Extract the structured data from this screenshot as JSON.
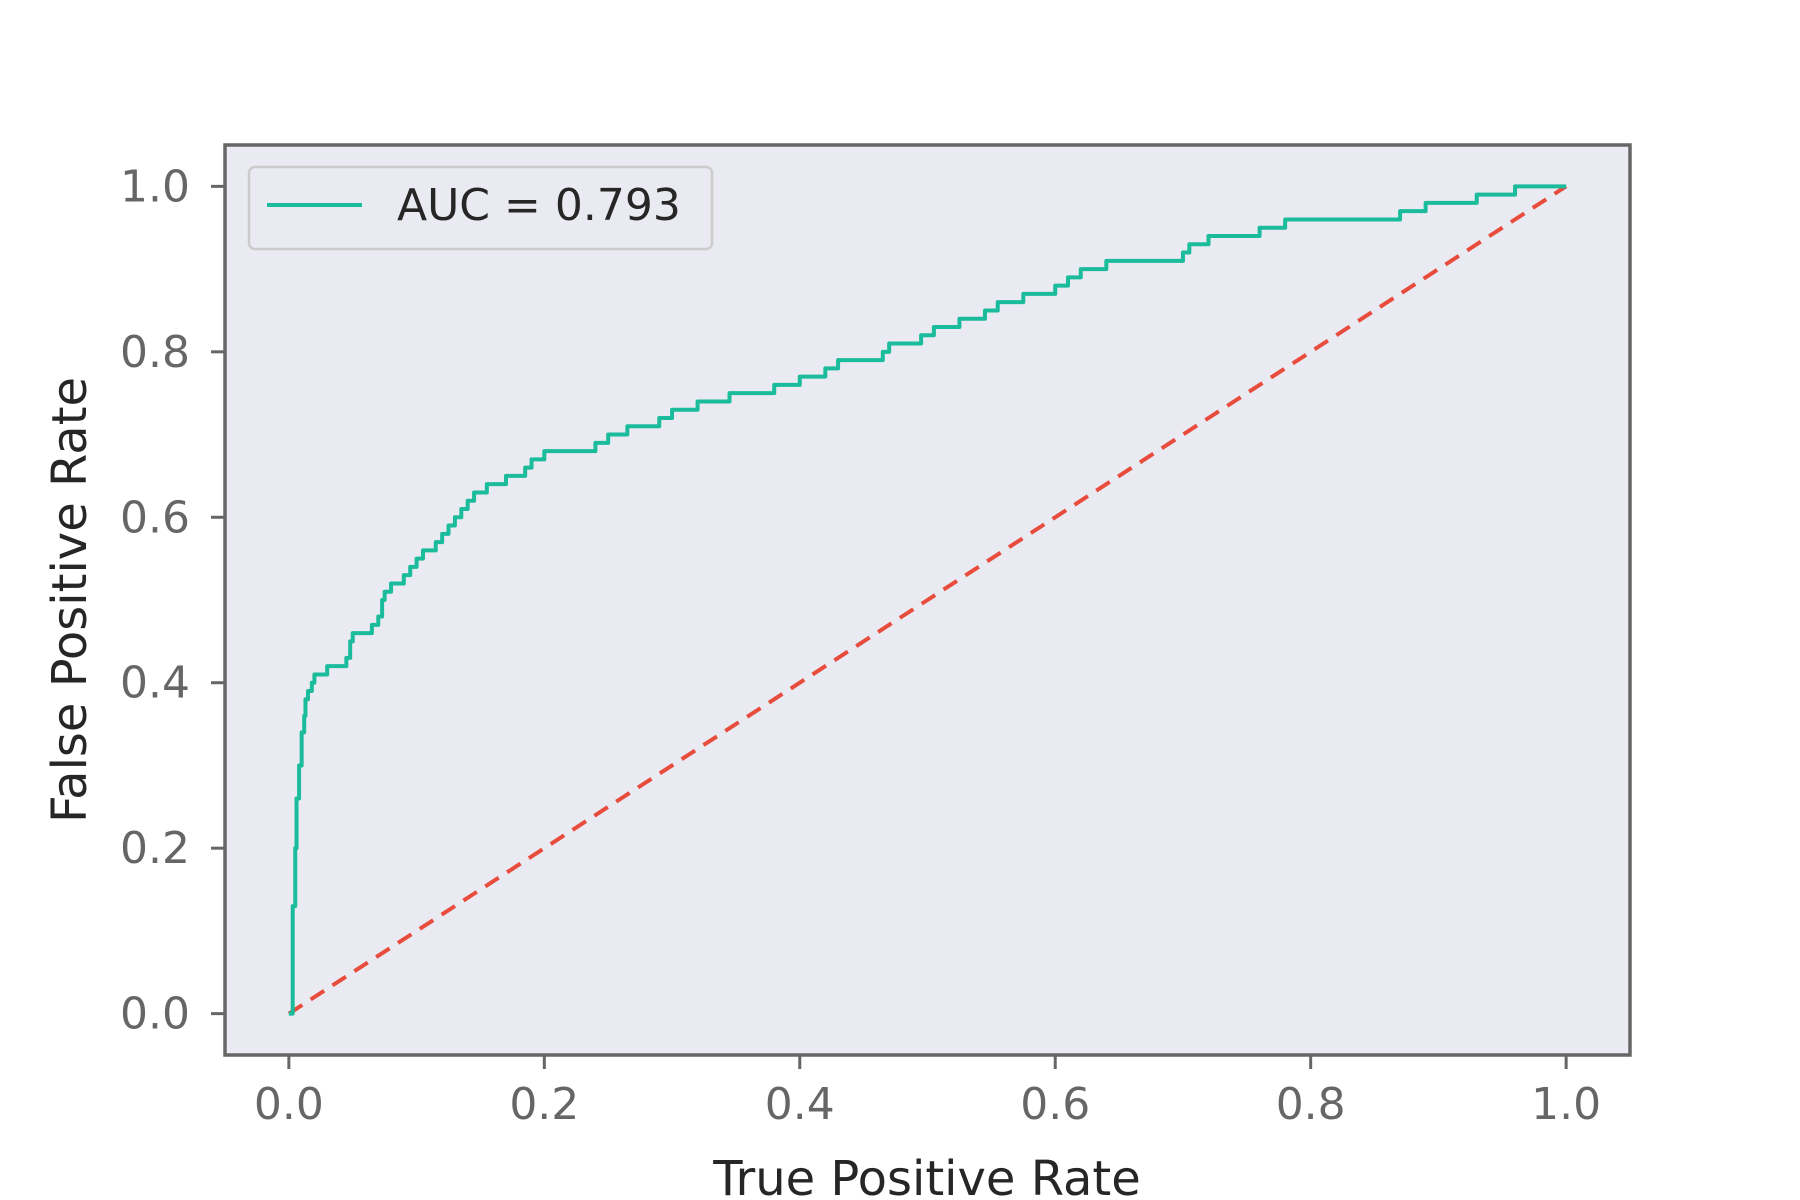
{
  "chart_data": {
    "type": "line",
    "title": "",
    "xlabel": "True Positive Rate",
    "ylabel": "False Positive Rate",
    "xlim": [
      -0.05,
      1.05
    ],
    "ylim": [
      -0.05,
      1.05
    ],
    "xticks": [
      0.0,
      0.2,
      0.4,
      0.6,
      0.8,
      1.0
    ],
    "yticks": [
      0.0,
      0.2,
      0.4,
      0.6,
      0.8,
      1.0
    ],
    "xtick_labels": [
      "0.0",
      "0.2",
      "0.4",
      "0.6",
      "0.8",
      "1.0"
    ],
    "ytick_labels": [
      "0.0",
      "0.2",
      "0.4",
      "0.6",
      "0.8",
      "1.0"
    ],
    "grid": false,
    "legend_position": "top-left",
    "background_color": "#eaeaf2",
    "series": [
      {
        "name": "AUC = 0.793",
        "color": "#1abc9c",
        "style": "solid-step",
        "x": [
          0.0,
          0.003,
          0.005,
          0.006,
          0.008,
          0.01,
          0.012,
          0.013,
          0.015,
          0.018,
          0.02,
          0.025,
          0.03,
          0.045,
          0.048,
          0.05,
          0.055,
          0.065,
          0.07,
          0.073,
          0.075,
          0.08,
          0.09,
          0.095,
          0.1,
          0.105,
          0.11,
          0.115,
          0.12,
          0.125,
          0.13,
          0.135,
          0.14,
          0.145,
          0.15,
          0.155,
          0.16,
          0.17,
          0.185,
          0.19,
          0.2,
          0.21,
          0.24,
          0.25,
          0.26,
          0.265,
          0.27,
          0.29,
          0.3,
          0.32,
          0.33,
          0.345,
          0.37,
          0.38,
          0.4,
          0.405,
          0.42,
          0.43,
          0.465,
          0.47,
          0.49,
          0.495,
          0.5,
          0.505,
          0.51,
          0.52,
          0.525,
          0.53,
          0.545,
          0.55,
          0.555,
          0.565,
          0.575,
          0.59,
          0.6,
          0.605,
          0.61,
          0.62,
          0.63,
          0.635,
          0.64,
          0.645,
          0.66,
          0.7,
          0.705,
          0.71,
          0.72,
          0.725,
          0.76,
          0.77,
          0.78,
          0.83,
          0.84,
          0.87,
          0.875,
          0.89,
          0.9,
          0.93,
          0.94,
          0.96,
          0.97,
          0.99,
          1.0
        ],
        "y": [
          0.0,
          0.13,
          0.2,
          0.26,
          0.3,
          0.34,
          0.36,
          0.38,
          0.39,
          0.4,
          0.41,
          0.41,
          0.42,
          0.43,
          0.45,
          0.46,
          0.46,
          0.47,
          0.48,
          0.5,
          0.51,
          0.52,
          0.53,
          0.54,
          0.55,
          0.56,
          0.56,
          0.57,
          0.58,
          0.59,
          0.6,
          0.61,
          0.62,
          0.63,
          0.63,
          0.64,
          0.64,
          0.65,
          0.66,
          0.67,
          0.68,
          0.68,
          0.69,
          0.7,
          0.7,
          0.71,
          0.71,
          0.72,
          0.73,
          0.74,
          0.74,
          0.75,
          0.75,
          0.76,
          0.77,
          0.77,
          0.78,
          0.79,
          0.8,
          0.81,
          0.81,
          0.82,
          0.82,
          0.83,
          0.83,
          0.83,
          0.84,
          0.84,
          0.85,
          0.85,
          0.86,
          0.86,
          0.87,
          0.87,
          0.88,
          0.88,
          0.89,
          0.9,
          0.9,
          0.9,
          0.91,
          0.91,
          0.91,
          0.92,
          0.93,
          0.93,
          0.94,
          0.94,
          0.95,
          0.95,
          0.96,
          0.96,
          0.96,
          0.97,
          0.97,
          0.98,
          0.98,
          0.99,
          0.99,
          1.0,
          1.0,
          1.0,
          1.0
        ]
      },
      {
        "name": "",
        "color": "#e74c3c",
        "style": "dashed",
        "x": [
          0.0,
          1.0
        ],
        "y": [
          0.0,
          1.0
        ]
      }
    ],
    "legend": [
      {
        "label": "AUC = 0.793",
        "color": "#1abc9c"
      }
    ]
  }
}
